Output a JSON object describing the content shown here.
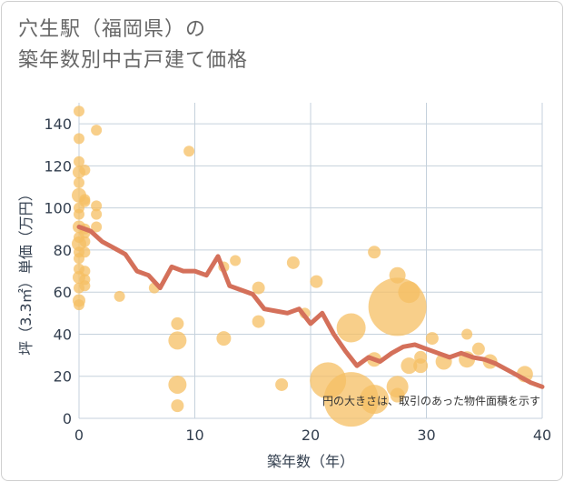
{
  "title_line1": "穴生駅（福岡県）の",
  "title_line2": "築年数別中古戸建て価格",
  "chart_data": {
    "type": "scatter",
    "xlabel": "築年数（年）",
    "ylabel": "坪（3.3㎡）単価（万円）",
    "xlim": [
      0,
      40
    ],
    "ylim": [
      0,
      150
    ],
    "x_ticks": [
      "0",
      "10",
      "20",
      "30",
      "40"
    ],
    "y_ticks": [
      "0",
      "20",
      "40",
      "60",
      "80",
      "100",
      "120",
      "140"
    ],
    "x_tick_values": [
      0,
      10,
      20,
      30,
      40
    ],
    "y_tick_values": [
      0,
      20,
      40,
      60,
      80,
      100,
      120,
      140
    ],
    "note": "円の大きさは、取引のあった物件面積を示す",
    "colors": {
      "bubble": "#f5bf63",
      "bubble_opacity": 0.75,
      "line": "#d4705a",
      "grid": "#c5d1dc",
      "axis": "#333f4f"
    },
    "bubbles": [
      {
        "x": 0,
        "y": 146,
        "r": 6
      },
      {
        "x": 0,
        "y": 133,
        "r": 6
      },
      {
        "x": 0,
        "y": 122,
        "r": 6
      },
      {
        "x": 0,
        "y": 117,
        "r": 7
      },
      {
        "x": 0,
        "y": 112,
        "r": 6
      },
      {
        "x": 0,
        "y": 106,
        "r": 8
      },
      {
        "x": 0,
        "y": 100,
        "r": 6
      },
      {
        "x": 0,
        "y": 97,
        "r": 6
      },
      {
        "x": 0,
        "y": 91,
        "r": 7
      },
      {
        "x": 0,
        "y": 86,
        "r": 6
      },
      {
        "x": 0,
        "y": 83,
        "r": 8
      },
      {
        "x": 0,
        "y": 79,
        "r": 6
      },
      {
        "x": 0,
        "y": 76,
        "r": 6
      },
      {
        "x": 0,
        "y": 71,
        "r": 6
      },
      {
        "x": 0,
        "y": 67,
        "r": 7
      },
      {
        "x": 0,
        "y": 62,
        "r": 6
      },
      {
        "x": 0,
        "y": 56,
        "r": 7
      },
      {
        "x": 0,
        "y": 54,
        "r": 6
      },
      {
        "x": 0.5,
        "y": 118,
        "r": 6
      },
      {
        "x": 0.5,
        "y": 104,
        "r": 6
      },
      {
        "x": 0.5,
        "y": 103,
        "r": 6
      },
      {
        "x": 0.5,
        "y": 90,
        "r": 6
      },
      {
        "x": 0.5,
        "y": 88,
        "r": 6
      },
      {
        "x": 0.5,
        "y": 84,
        "r": 6
      },
      {
        "x": 0.5,
        "y": 79,
        "r": 6
      },
      {
        "x": 0.5,
        "y": 70,
        "r": 6
      },
      {
        "x": 0.5,
        "y": 66,
        "r": 6
      },
      {
        "x": 0.5,
        "y": 63,
        "r": 6
      },
      {
        "x": 1.5,
        "y": 137,
        "r": 6
      },
      {
        "x": 1.5,
        "y": 101,
        "r": 6
      },
      {
        "x": 1.5,
        "y": 97,
        "r": 6
      },
      {
        "x": 1.5,
        "y": 91,
        "r": 6
      },
      {
        "x": 3.5,
        "y": 58,
        "r": 6
      },
      {
        "x": 6.5,
        "y": 62,
        "r": 6
      },
      {
        "x": 9.5,
        "y": 127,
        "r": 6
      },
      {
        "x": 8.5,
        "y": 45,
        "r": 7
      },
      {
        "x": 8.5,
        "y": 37,
        "r": 10
      },
      {
        "x": 8.5,
        "y": 16,
        "r": 10
      },
      {
        "x": 8.5,
        "y": 6,
        "r": 7
      },
      {
        "x": 12.5,
        "y": 72,
        "r": 6
      },
      {
        "x": 13.5,
        "y": 75,
        "r": 6
      },
      {
        "x": 12.5,
        "y": 38,
        "r": 8
      },
      {
        "x": 15.5,
        "y": 62,
        "r": 7
      },
      {
        "x": 15.5,
        "y": 46,
        "r": 7
      },
      {
        "x": 17.5,
        "y": 16,
        "r": 7
      },
      {
        "x": 18.5,
        "y": 74,
        "r": 7
      },
      {
        "x": 19.5,
        "y": 50,
        "r": 6
      },
      {
        "x": 20.5,
        "y": 65,
        "r": 7
      },
      {
        "x": 21.5,
        "y": 18,
        "r": 20
      },
      {
        "x": 23.5,
        "y": 43,
        "r": 16
      },
      {
        "x": 23.5,
        "y": 9,
        "r": 30
      },
      {
        "x": 25.5,
        "y": 79,
        "r": 7
      },
      {
        "x": 25.5,
        "y": 28,
        "r": 8
      },
      {
        "x": 25.5,
        "y": 9,
        "r": 16
      },
      {
        "x": 27.5,
        "y": 68,
        "r": 9
      },
      {
        "x": 27.5,
        "y": 53,
        "r": 32
      },
      {
        "x": 27.5,
        "y": 15,
        "r": 12
      },
      {
        "x": 27.5,
        "y": 11,
        "r": 8
      },
      {
        "x": 28.5,
        "y": 60,
        "r": 12
      },
      {
        "x": 28.5,
        "y": 25,
        "r": 9
      },
      {
        "x": 29.5,
        "y": 29,
        "r": 7
      },
      {
        "x": 29.5,
        "y": 25,
        "r": 8
      },
      {
        "x": 30.5,
        "y": 38,
        "r": 7
      },
      {
        "x": 31.5,
        "y": 27,
        "r": 9
      },
      {
        "x": 33.5,
        "y": 40,
        "r": 6
      },
      {
        "x": 33.5,
        "y": 28,
        "r": 9
      },
      {
        "x": 34.5,
        "y": 33,
        "r": 7
      },
      {
        "x": 35.5,
        "y": 27,
        "r": 8
      },
      {
        "x": 38.5,
        "y": 21,
        "r": 9
      }
    ],
    "trend": {
      "x": [
        0,
        1,
        2,
        3,
        4,
        5,
        6,
        7,
        8,
        9,
        10,
        11,
        12,
        13,
        14,
        15,
        16,
        17,
        18,
        19,
        20,
        21,
        22,
        23,
        24,
        25,
        26,
        27,
        28,
        29,
        30,
        31,
        32,
        33,
        34,
        35,
        36,
        37,
        38,
        39,
        40
      ],
      "y": [
        91,
        89,
        84,
        81,
        78,
        70,
        68,
        62,
        72,
        70,
        70,
        68,
        77,
        63,
        61,
        59,
        52,
        51,
        50,
        52,
        45,
        50,
        40,
        32,
        25,
        29,
        27,
        31,
        34,
        35,
        33,
        31,
        29,
        31,
        29,
        28,
        26,
        23,
        20,
        17,
        15
      ]
    }
  }
}
